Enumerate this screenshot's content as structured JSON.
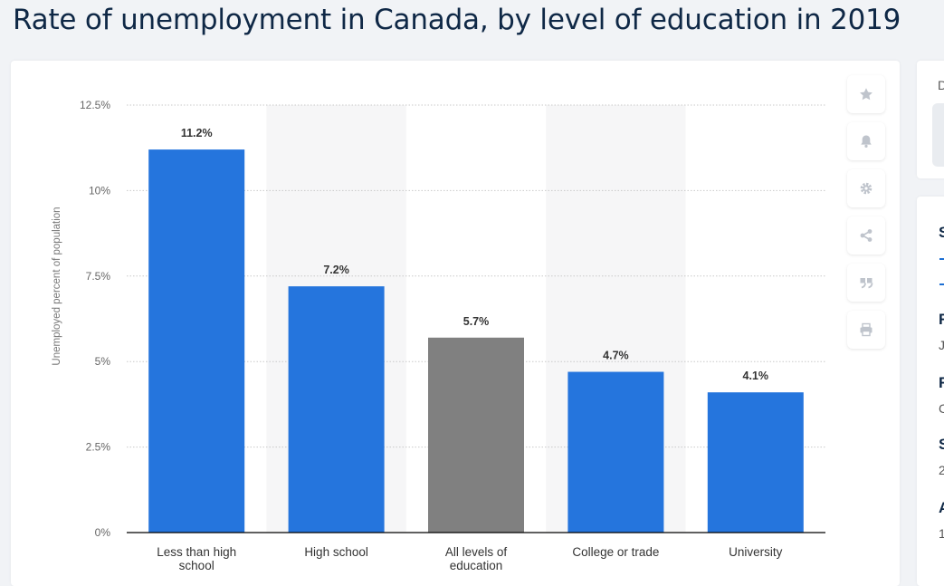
{
  "page": {
    "title": "Rate of unemployment in Canada, by level of education in 2019"
  },
  "colors": {
    "accent": "#2575dd",
    "highlight": "#808080",
    "icon": "#bfc4cc"
  },
  "toolbar": {
    "buttons": [
      {
        "name": "favorite-button",
        "icon": "star-icon"
      },
      {
        "name": "notification-button",
        "icon": "bell-icon"
      },
      {
        "name": "settings-button",
        "icon": "gear-icon"
      },
      {
        "name": "share-button",
        "icon": "share-icon"
      },
      {
        "name": "cite-button",
        "icon": "quote-icon"
      },
      {
        "name": "print-button",
        "icon": "printer-icon"
      }
    ]
  },
  "sidebar": {
    "top_card": {
      "letter": "D"
    },
    "info_card": {
      "items": [
        {
          "heading": "S"
        },
        {
          "heading": "R",
          "value": "J"
        },
        {
          "heading": "R",
          "value": "C"
        },
        {
          "heading": "S",
          "value": "2"
        },
        {
          "heading": "A",
          "value": "1"
        }
      ]
    }
  },
  "chart_data": {
    "type": "bar",
    "title": "",
    "xlabel": "",
    "ylabel": "Unemployed percent of population",
    "ylim": [
      0,
      12.5
    ],
    "yticks": [
      0,
      2.5,
      5,
      7.5,
      10,
      12.5
    ],
    "ytick_labels": [
      "0%",
      "2.5%",
      "5%",
      "7.5%",
      "10%",
      "12.5%"
    ],
    "categories": [
      [
        "Less than high",
        "school"
      ],
      [
        "High school"
      ],
      [
        "All levels of",
        "education"
      ],
      [
        "College or trade"
      ],
      [
        "University"
      ]
    ],
    "values": [
      11.2,
      7.2,
      5.7,
      4.7,
      4.1
    ],
    "value_labels": [
      "11.2%",
      "7.2%",
      "5.7%",
      "4.7%",
      "4.1%"
    ],
    "bar_colors": [
      "#2575dd",
      "#2575dd",
      "#808080",
      "#2575dd",
      "#2575dd"
    ],
    "grid": true,
    "legend": "none"
  }
}
